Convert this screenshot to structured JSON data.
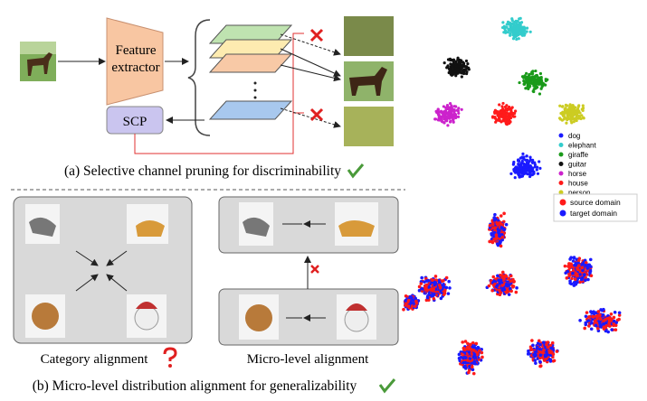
{
  "panel_a": {
    "feature_extractor": [
      "Feature",
      "extractor"
    ],
    "scp": "SCP",
    "caption": "(a) Selective channel pruning for discriminability"
  },
  "panel_b": {
    "category_alignment": "Category alignment",
    "micro_alignment": "Micro-level alignment",
    "caption": "(b) Micro-level distribution alignment for generalizability"
  },
  "tsne_top": {
    "legend": [
      {
        "label": "dog",
        "color": "#1a1aff"
      },
      {
        "label": "elephant",
        "color": "#33cccc"
      },
      {
        "label": "giraffe",
        "color": "#1a9a1a"
      },
      {
        "label": "guitar",
        "color": "#111111"
      },
      {
        "label": "horse",
        "color": "#cc22cc"
      },
      {
        "label": "house",
        "color": "#ff1a1a"
      },
      {
        "label": "person",
        "color": "#cccc22"
      }
    ]
  },
  "tsne_bottom": {
    "legend": [
      {
        "label": "source domain",
        "color": "#ff1a1a"
      },
      {
        "label": "target domain",
        "color": "#1a1aff"
      }
    ]
  }
}
